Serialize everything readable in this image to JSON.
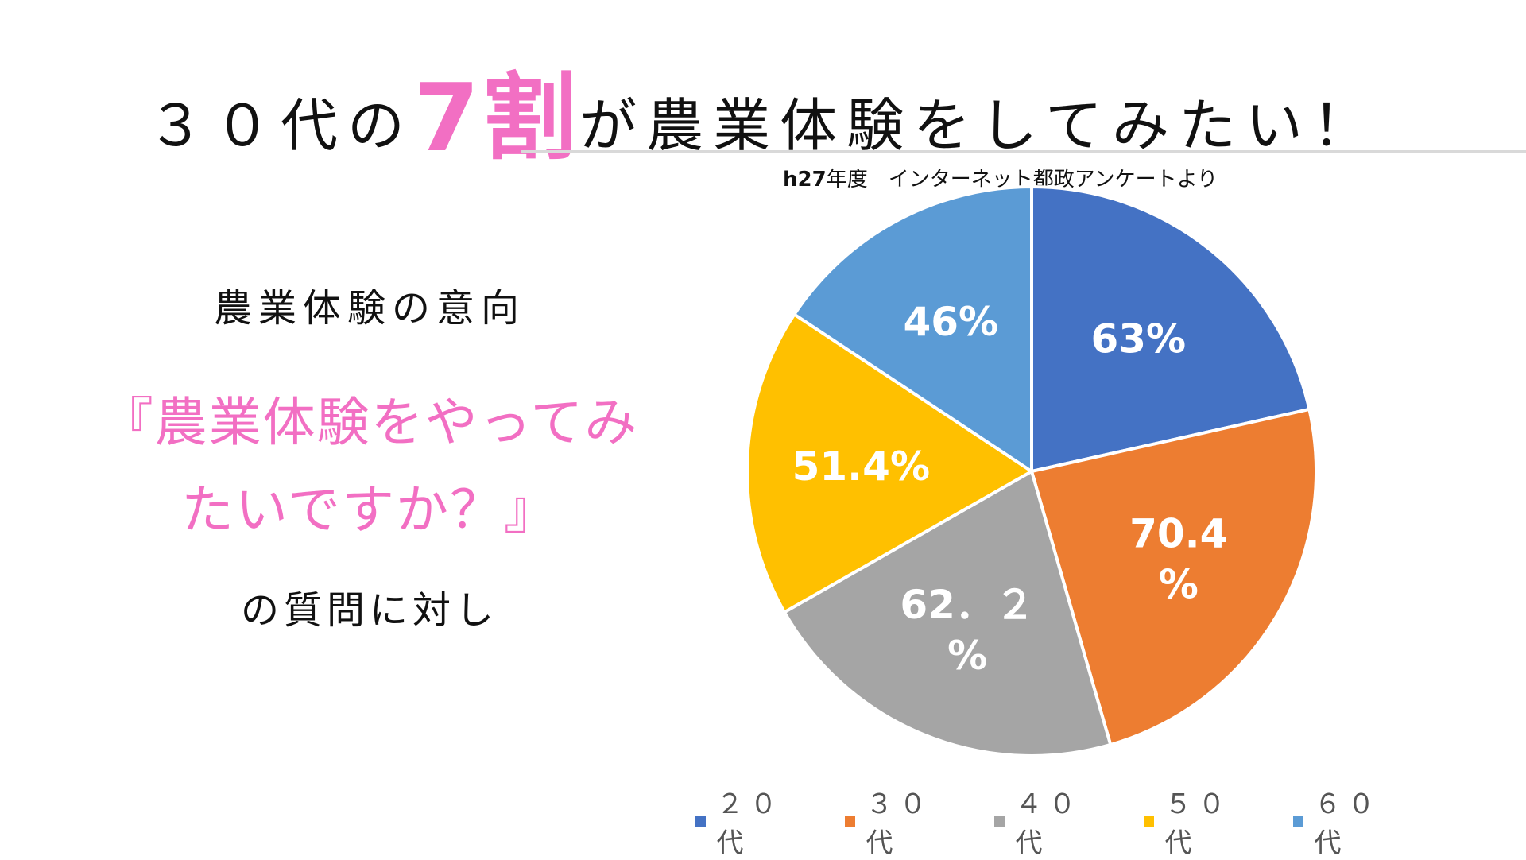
{
  "headline": {
    "part1": "３０代の",
    "emphasis": "7割",
    "part2": "が農業体験をしてみたい！"
  },
  "source_prefix": "h27",
  "source_rest": "年度　インターネット都政アンケートより",
  "left_text": {
    "heading": "農業体験の意向",
    "question_line1": "『農業体験をやってみ",
    "question_line2": "たいですか？』",
    "footer": "の質問に対し"
  },
  "colors": {
    "accent_pink": "#f26fc3",
    "blue": "#4472c4",
    "orange": "#ed7d31",
    "gray": "#a5a5a5",
    "yellow": "#ffc000",
    "light_blue": "#5b9bd5"
  },
  "chart_data": {
    "type": "pie",
    "title": "",
    "legend_position": "bottom",
    "slices": [
      {
        "category": "２０代",
        "value": 63,
        "label_lines": [
          "63%"
        ],
        "color": "#4472c4"
      },
      {
        "category": "３０代",
        "value": 70.4,
        "label_lines": [
          "70.4",
          "%"
        ],
        "color": "#ed7d31"
      },
      {
        "category": "４０代",
        "value": 62.2,
        "label_lines": [
          "62．２",
          "%"
        ],
        "color": "#a5a5a5"
      },
      {
        "category": "５０代",
        "value": 51.4,
        "label_lines": [
          "51.4%"
        ],
        "color": "#ffc000"
      },
      {
        "category": "６０代",
        "value": 46,
        "label_lines": [
          "46%"
        ],
        "color": "#5b9bd5"
      }
    ]
  }
}
